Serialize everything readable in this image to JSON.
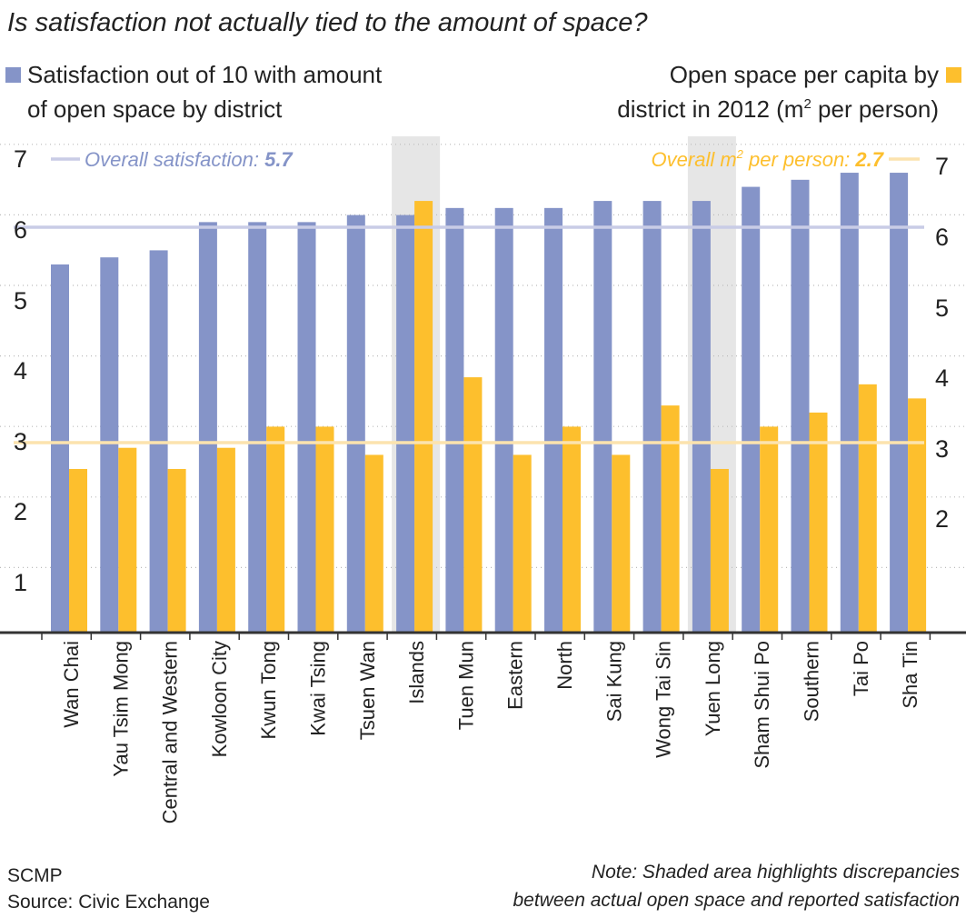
{
  "chart_data": {
    "type": "bar",
    "title": "Is satisfaction not actually tied to the amount of space?",
    "legend_left": {
      "line1": "Satisfaction out of 10 with amount",
      "line2": "of open space by district",
      "color": "#8594C8"
    },
    "legend_right": {
      "line1": "Open space per capita by",
      "line2_prefix": "district in 2012 (m",
      "line2_sup": "2",
      "line2_suffix": " per person)",
      "color": "#FDBF2D"
    },
    "categories": [
      "Wan Chai",
      "Yau Tsim Mong",
      "Central and Western",
      "Kowloon City",
      "Kwun Tong",
      "Kwai Tsing",
      "Tsuen Wan",
      "Islands",
      "Tuen Mun",
      "Eastern",
      "North",
      "Sai Kung",
      "Wong Tai Sin",
      "Yuen Long",
      "Sham Shui Po",
      "Southern",
      "Tai Po",
      "Sha Tin"
    ],
    "series": [
      {
        "name": "Satisfaction out of 10 with amount of open space by district",
        "axis": "left",
        "color": "#8594C8",
        "values": [
          5.0,
          5.1,
          5.2,
          5.6,
          5.6,
          5.6,
          5.7,
          5.7,
          5.8,
          5.8,
          5.8,
          5.9,
          5.9,
          5.9,
          6.1,
          6.2,
          6.3,
          6.3
        ]
      },
      {
        "name": "Open space per capita by district in 2012 (m2 per person)",
        "axis": "right",
        "color": "#FDBF2D",
        "values": [
          2.1,
          2.4,
          2.1,
          2.4,
          2.7,
          2.7,
          2.3,
          5.9,
          3.4,
          2.3,
          2.7,
          2.3,
          3.0,
          2.1,
          2.7,
          2.9,
          3.3,
          3.1
        ]
      }
    ],
    "y_left": {
      "ticks": [
        "1",
        "2",
        "3",
        "4",
        "5",
        "6",
        "7"
      ],
      "ylim": [
        0,
        7
      ]
    },
    "y_right": {
      "ticks": [
        "2",
        "3",
        "4",
        "5",
        "6",
        "7"
      ],
      "ylim": [
        0,
        7
      ]
    },
    "reference_lines": [
      {
        "label_prefix": "Overall satisfaction: ",
        "label_value": "5.7",
        "value": 5.7,
        "axis": "left",
        "color": "#C9CCE6",
        "text_color": "#8594C8"
      },
      {
        "label_prefix": "Overall m",
        "label_sup": "2",
        "label_mid": " per person: ",
        "label_value": "2.7",
        "value": 2.7,
        "axis": "right",
        "color": "#FCE3AE",
        "text_color": "#FDBF2D"
      }
    ],
    "highlighted_categories": [
      "Islands",
      "Yuen Long"
    ],
    "highlight_color": "#E6E6E6"
  },
  "footer": {
    "publisher": "SCMP",
    "source": "Source: Civic Exchange",
    "note_line1": "Note: Shaded area highlights discrepancies",
    "note_line2": "between actual open space and reported satisfaction"
  }
}
